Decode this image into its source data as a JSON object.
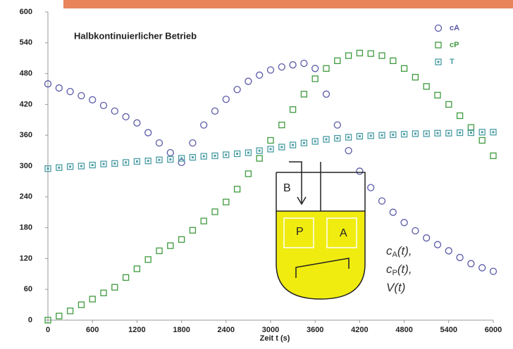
{
  "chart_data": {
    "type": "scatter",
    "title": "Halbkontinuierlicher Betrieb",
    "xlabel": "Zeit t (s)",
    "x": [
      0,
      150,
      300,
      450,
      600,
      750,
      900,
      1050,
      1200,
      1350,
      1500,
      1650,
      1800,
      1950,
      2100,
      2250,
      2400,
      2550,
      2700,
      2850,
      3000,
      3150,
      3300,
      3450,
      3600,
      3750,
      3900,
      4050,
      4200,
      4350,
      4500,
      4650,
      4800,
      4950,
      5100,
      5250,
      5400,
      5550,
      5700,
      5850,
      6000
    ],
    "series": [
      {
        "name": "cA",
        "color": "#5a5aa8",
        "marker": "circle",
        "values": [
          460,
          452,
          445,
          437,
          429,
          418,
          407,
          396,
          384,
          365,
          345,
          326,
          307,
          345,
          380,
          407,
          430,
          449,
          465,
          477,
          487,
          493,
          497,
          500,
          490,
          440,
          380,
          330,
          290,
          258,
          232,
          210,
          190,
          174,
          160,
          147,
          135,
          122,
          110,
          102,
          95
        ]
      },
      {
        "name": "cP",
        "color": "#3f9a3f",
        "marker": "square",
        "values": [
          0,
          8,
          18,
          30,
          41,
          53,
          64,
          83,
          100,
          118,
          135,
          145,
          157,
          175,
          193,
          211,
          230,
          255,
          285,
          315,
          350,
          380,
          410,
          440,
          470,
          490,
          505,
          515,
          520,
          519,
          515,
          505,
          490,
          473,
          455,
          438,
          420,
          398,
          375,
          350,
          320
        ]
      },
      {
        "name": "T",
        "color": "#4a9ca4",
        "marker": "square-dot",
        "values": [
          295,
          297,
          299,
          300,
          302,
          304,
          305,
          307,
          309,
          310,
          312,
          313,
          315,
          317,
          319,
          320,
          322,
          324,
          326,
          330,
          333,
          337,
          341,
          345,
          348,
          352,
          354,
          356,
          358,
          359,
          360,
          361,
          362,
          363,
          363,
          364,
          364,
          365,
          365,
          366,
          366
        ]
      }
    ],
    "xlim": [
      0,
      6000
    ],
    "xticks": [
      0,
      600,
      1200,
      1800,
      2400,
      3000,
      3600,
      4200,
      4800,
      5400,
      6000
    ],
    "ylim": [
      0,
      600
    ],
    "yticks": [
      0,
      60,
      120,
      180,
      240,
      300,
      360,
      420,
      480,
      540,
      600
    ],
    "legend": "top-right",
    "diagram": {
      "feed": "B",
      "left_box": "P",
      "right_box": "A",
      "annotations": [
        {
          "base": "c",
          "sub": "A",
          "rest": "(t),"
        },
        {
          "base": "c",
          "sub": "P",
          "rest": "(t),"
        },
        {
          "base": "V",
          "rest": "(t)"
        }
      ]
    }
  }
}
